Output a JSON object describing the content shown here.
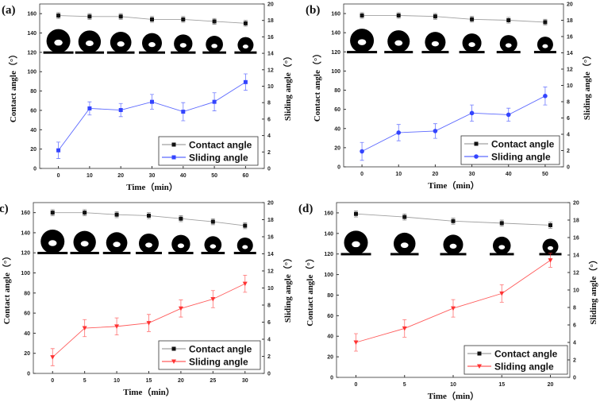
{
  "chart_data": [
    {
      "panel_label": "(a)",
      "type": "line",
      "x": [
        0,
        10,
        20,
        30,
        40,
        50,
        60
      ],
      "xlabel": "Time（min）",
      "ylabel": "Contact angle（°）",
      "y2label": "Sliding angle（°）",
      "ylim": [
        0,
        170
      ],
      "y2lim": [
        0,
        20
      ],
      "yticks": [
        0,
        20,
        40,
        60,
        80,
        100,
        120,
        140,
        160
      ],
      "y2ticks": [
        0,
        2,
        4,
        6,
        8,
        10,
        12,
        14,
        16,
        18,
        20
      ],
      "legend_position": "bottom-right",
      "series": [
        {
          "name": "Contact angle",
          "axis": "left",
          "color": "#111111",
          "marker": "square",
          "values": [
            158,
            157,
            157,
            154,
            154,
            152,
            150
          ],
          "error": [
            3,
            3,
            3,
            3,
            3,
            3,
            3
          ]
        },
        {
          "name": "Sliding angle",
          "axis": "right",
          "color": "#3344ff",
          "marker": "square",
          "values": [
            2.2,
            7.3,
            7.1,
            8.1,
            6.9,
            8.1,
            10.5
          ],
          "error": [
            1.0,
            0.8,
            0.8,
            0.9,
            1.1,
            1.1,
            1.0
          ]
        }
      ]
    },
    {
      "panel_label": "(b)",
      "type": "line",
      "x": [
        0,
        10,
        20,
        30,
        40,
        50
      ],
      "xlabel": "Time（min）",
      "ylabel": "Contact angle（°）",
      "y2label": "Sliding angle（°）",
      "ylim": [
        0,
        170
      ],
      "y2lim": [
        0,
        20
      ],
      "yticks": [
        0,
        20,
        40,
        60,
        80,
        100,
        120,
        140,
        160
      ],
      "y2ticks": [
        0,
        2,
        4,
        6,
        8,
        10,
        12,
        14,
        16,
        18,
        20
      ],
      "legend_position": "bottom-right",
      "series": [
        {
          "name": "Contact angle",
          "axis": "left",
          "color": "#111111",
          "marker": "square",
          "values": [
            158,
            158,
            157,
            154,
            153,
            151
          ],
          "error": [
            3,
            3,
            3,
            3,
            3,
            3
          ]
        },
        {
          "name": "Sliding angle",
          "axis": "right",
          "color": "#3344ff",
          "marker": "circle",
          "values": [
            1.9,
            4.2,
            4.4,
            6.6,
            6.4,
            8.7
          ],
          "error": [
            1.1,
            1.0,
            0.9,
            1.0,
            0.8,
            1.1
          ]
        }
      ]
    },
    {
      "panel_label": "(c)",
      "type": "line",
      "x": [
        0,
        5,
        10,
        15,
        20,
        25,
        30
      ],
      "xlabel": "Time（min）",
      "ylabel": "Contact angle（°）",
      "y2label": "Sliding angle（°）",
      "ylim": [
        0,
        170
      ],
      "y2lim": [
        0,
        20
      ],
      "yticks": [
        0,
        20,
        40,
        60,
        80,
        100,
        120,
        140,
        160
      ],
      "y2ticks": [
        0,
        2,
        4,
        6,
        8,
        10,
        12,
        14,
        16,
        18,
        20
      ],
      "legend_position": "bottom-right",
      "series": [
        {
          "name": "Contact angle",
          "axis": "left",
          "color": "#111111",
          "marker": "square",
          "values": [
            160,
            160,
            158,
            157,
            154,
            151,
            147
          ],
          "error": [
            3,
            3,
            3,
            3,
            3,
            3,
            3
          ]
        },
        {
          "name": "Sliding angle",
          "axis": "right",
          "color": "#ff3333",
          "marker": "triangle-down",
          "values": [
            1.9,
            5.3,
            5.5,
            5.9,
            7.6,
            8.7,
            10.5
          ],
          "error": [
            1.0,
            1.0,
            1.0,
            1.0,
            1.0,
            1.0,
            1.0
          ]
        }
      ]
    },
    {
      "panel_label": "(d)",
      "type": "line",
      "x": [
        0,
        5,
        10,
        15,
        20
      ],
      "xlabel": "Time（min）",
      "ylabel": "Contact angle（°）",
      "y2label": "Sliding angle（°）",
      "ylim": [
        0,
        170
      ],
      "y2lim": [
        0,
        20
      ],
      "yticks": [
        0,
        20,
        40,
        60,
        80,
        100,
        120,
        140,
        160
      ],
      "y2ticks": [
        0,
        2,
        4,
        6,
        8,
        10,
        12,
        14,
        16,
        18,
        20
      ],
      "legend_position": "bottom-right",
      "series": [
        {
          "name": "Contact angle",
          "axis": "left",
          "color": "#111111",
          "marker": "square",
          "values": [
            159,
            156,
            152,
            150,
            148
          ],
          "error": [
            3,
            3,
            3,
            3,
            3
          ]
        },
        {
          "name": "Sliding angle",
          "axis": "right",
          "color": "#ff3333",
          "marker": "triangle-down",
          "values": [
            4.0,
            5.6,
            7.9,
            9.6,
            13.4
          ],
          "error": [
            1.0,
            1.0,
            1.0,
            1.0,
            0.8
          ]
        }
      ]
    }
  ]
}
